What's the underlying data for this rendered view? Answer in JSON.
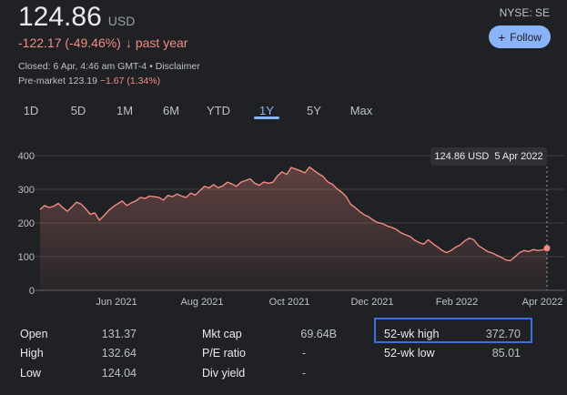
{
  "quote": {
    "price": "124.86",
    "currency": "USD",
    "change": "-122.17 (-49.46%)",
    "change_arrow": "↓",
    "change_period": "past year",
    "closed_line": "Closed: 6 Apr, 4:46 am GMT-4 • Disclaimer",
    "premarket_label": "Pre-market 123.19",
    "premarket_change": "−1.67 (1.34%)",
    "exchange": "NYSE: SE",
    "follow_label": "Follow"
  },
  "tabs": [
    "1D",
    "5D",
    "1M",
    "6M",
    "YTD",
    "1Y",
    "5Y",
    "Max"
  ],
  "active_tab": "1Y",
  "tooltip": {
    "value": "124.86 USD",
    "date": "5 Apr 2022"
  },
  "colors": {
    "negative": "#f28b82",
    "accent": "#8ab4f8",
    "highlight_box": "#3b6fe6",
    "chart_line": "#f28b82"
  },
  "chart_data": {
    "type": "area",
    "title": "",
    "xlabel": "",
    "ylabel": "",
    "ylim": [
      0,
      400
    ],
    "yticks": [
      "0",
      "100",
      "200",
      "300",
      "400"
    ],
    "xticks": [
      "Jun 2021",
      "Aug 2021",
      "Oct 2021",
      "Dec 2021",
      "Feb 2022",
      "Apr 2022"
    ],
    "grid": true,
    "start": "6 Apr 2021",
    "end": "5 Apr 2022",
    "series": [
      {
        "name": "",
        "values": [
          240,
          252,
          246,
          250,
          258,
          245,
          235,
          248,
          262,
          256,
          242,
          226,
          230,
          208,
          222,
          237,
          248,
          257,
          265,
          252,
          260,
          266,
          276,
          273,
          280,
          278,
          276,
          268,
          282,
          278,
          286,
          280,
          276,
          289,
          283,
          296,
          309,
          304,
          314,
          305,
          310,
          321,
          316,
          309,
          321,
          326,
          331,
          318,
          312,
          322,
          318,
          321,
          340,
          352,
          344,
          365,
          360,
          355,
          349,
          366,
          356,
          346,
          338,
          322,
          315,
          302,
          292,
          279,
          256,
          246,
          234,
          224,
          218,
          208,
          201,
          198,
          191,
          187,
          181,
          171,
          165,
          160,
          149,
          142,
          137,
          150,
          139,
          129,
          119,
          112,
          118,
          128,
          135,
          147,
          155,
          150,
          133,
          124,
          115,
          111,
          104,
          98,
          90,
          88,
          100,
          112,
          118,
          115,
          121,
          118,
          120,
          125
        ]
      }
    ]
  },
  "stats": {
    "left": [
      {
        "label": "Open",
        "value": "131.37"
      },
      {
        "label": "High",
        "value": "132.64"
      },
      {
        "label": "Low",
        "value": "124.04"
      }
    ],
    "middle": [
      {
        "label": "Mkt cap",
        "value": "69.64B"
      },
      {
        "label": "P/E ratio",
        "value": "-"
      },
      {
        "label": "Div yield",
        "value": "-"
      }
    ],
    "right": [
      {
        "label": "52-wk high",
        "value": "372.70"
      },
      {
        "label": "52-wk low",
        "value": "85.01"
      }
    ]
  }
}
